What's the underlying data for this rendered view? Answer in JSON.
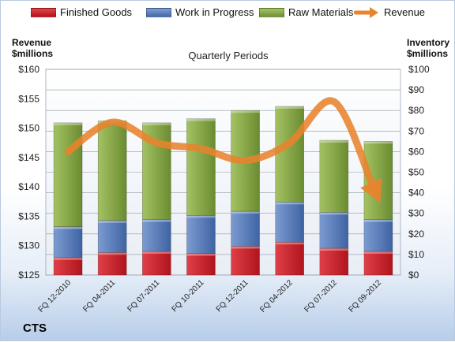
{
  "chart_data": {
    "type": "bar",
    "subtitle": "Quarterly Periods",
    "categories": [
      "FQ 12-2010",
      "FQ 04-2011",
      "FQ 07-2011",
      "FQ 10-2011",
      "FQ 12-2011",
      "FQ 04-2012",
      "FQ 07-2012",
      "FQ 09-2012"
    ],
    "series": [
      {
        "name": "Finished Goods",
        "axis": "right",
        "color": "#cc1f27",
        "values": [
          8.5,
          11,
          11.5,
          10.5,
          14,
          16,
          13,
          11.5
        ]
      },
      {
        "name": "Work in Progress",
        "axis": "right",
        "color": "#5b7fbd",
        "values": [
          15,
          15.5,
          15.5,
          18.5,
          17,
          19.5,
          17.5,
          15.5
        ]
      },
      {
        "name": "Raw Materials",
        "axis": "right",
        "color": "#8aab4c",
        "values": [
          50.5,
          48.5,
          47,
          47,
          49,
          46.5,
          35,
          38
        ]
      },
      {
        "name": "Revenue",
        "axis": "left",
        "type": "line",
        "color": "#e8832e",
        "values": [
          146,
          151,
          147.5,
          146.5,
          144.5,
          147.5,
          154.5,
          138
        ]
      }
    ],
    "left_axis": {
      "label": "Revenue $millions",
      "min": 125,
      "max": 160,
      "step": 5,
      "prefix": "$"
    },
    "right_axis": {
      "label": "Inventory $millions",
      "min": 0,
      "max": 100,
      "step": 10,
      "prefix": "$"
    },
    "legend_position": "top",
    "grid": true
  },
  "labels": {
    "left_axis_line1": "Revenue",
    "left_axis_line2": "$millions",
    "right_axis_line1": "Inventory",
    "right_axis_line2": "$millions",
    "subtitle": "Quarterly Periods",
    "brand": "CTS"
  },
  "legend": [
    {
      "label": "Finished Goods",
      "color": "#cc1f27"
    },
    {
      "label": "Work in Progress",
      "color": "#5b7fbd"
    },
    {
      "label": "Raw Materials",
      "color": "#8aab4c"
    },
    {
      "label": "Revenue",
      "color": "#e8832e"
    }
  ]
}
